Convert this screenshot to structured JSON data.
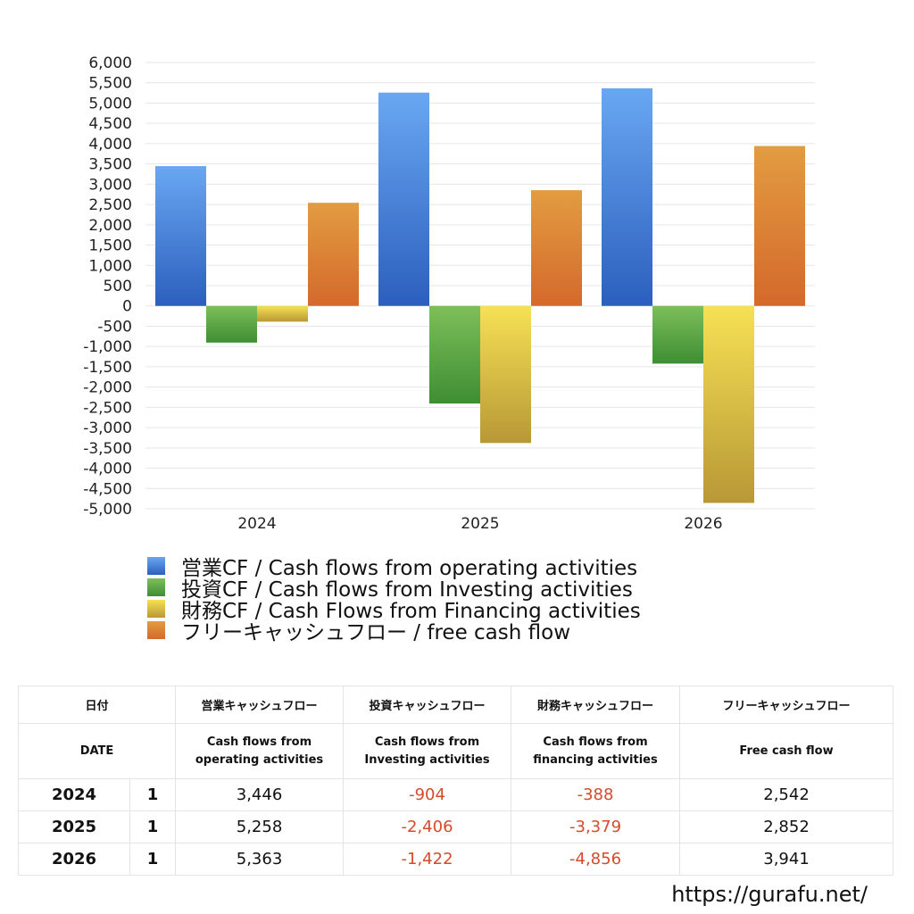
{
  "chart_data": {
    "type": "bar",
    "categories": [
      "2024",
      "2025",
      "2026"
    ],
    "ylim": [
      -5000,
      6000
    ],
    "yticks": [
      6000,
      5500,
      5000,
      4500,
      4000,
      3500,
      3000,
      2500,
      2000,
      1500,
      1000,
      500,
      0,
      -500,
      -1000,
      -1500,
      -2000,
      -2500,
      -3000,
      -3500,
      -4000,
      -4500,
      -5000
    ],
    "ytick_labels": [
      "6,000",
      "5,500",
      "5,000",
      "4,500",
      "4,000",
      "3,500",
      "3,000",
      "2,500",
      "2,000",
      "1,500",
      "1,000",
      "500",
      "0",
      "-500",
      "-1,000",
      "-1,500",
      "-2,000",
      "-2,500",
      "-3,000",
      "-3,500",
      "-4,000",
      "-4,500",
      "-5,000"
    ],
    "grid": true,
    "legend_position": "bottom",
    "series": [
      {
        "name": "営業CF / Cash flows from operating activities",
        "values": [
          3446,
          5258,
          5363
        ],
        "color_top": "#69a7f2",
        "color_bottom": "#2c5fbd"
      },
      {
        "name": "投資CF / Cash flows from Investing activities",
        "values": [
          -904,
          -2406,
          -1422
        ],
        "color_top": "#7dbf5a",
        "color_bottom": "#3e8e33"
      },
      {
        "name": "財務CF / Cash Flows from Financing activities",
        "values": [
          -388,
          -3379,
          -4856
        ],
        "color_top": "#f6e154",
        "color_bottom": "#b89836"
      },
      {
        "name": "フリーキャッシュフロー / free cash flow",
        "values": [
          2542,
          2852,
          3941
        ],
        "color_top": "#e29c40",
        "color_bottom": "#d4692c"
      }
    ]
  },
  "table": {
    "header_ja": [
      "日付",
      "営業キャッシュフロー",
      "投資キャッシュフロー",
      "財務キャッシュフロー",
      "フリーキャッシュフロー"
    ],
    "header_en": [
      "DATE",
      "Cash flows from operating activities",
      "Cash flows from Investing activities",
      "Cash flows from financing activities",
      "Free cash flow"
    ],
    "header_en_lines": [
      [
        "DATE"
      ],
      [
        "Cash flows from",
        "operating activities"
      ],
      [
        "Cash flows from",
        "Investing activities"
      ],
      [
        "Cash flows from",
        "financing activities"
      ],
      [
        "Free cash flow"
      ]
    ],
    "rows": [
      {
        "year": "2024",
        "month": "1",
        "operating": "3,446",
        "investing": "-904",
        "financing": "-388",
        "free": "2,542"
      },
      {
        "year": "2025",
        "month": "1",
        "operating": "5,258",
        "investing": "-2,406",
        "financing": "-3,379",
        "free": "2,852"
      },
      {
        "year": "2026",
        "month": "1",
        "operating": "5,363",
        "investing": "-1,422",
        "financing": "-4,856",
        "free": "3,941"
      }
    ]
  },
  "footer": {
    "url": "https://gurafu.net/"
  }
}
